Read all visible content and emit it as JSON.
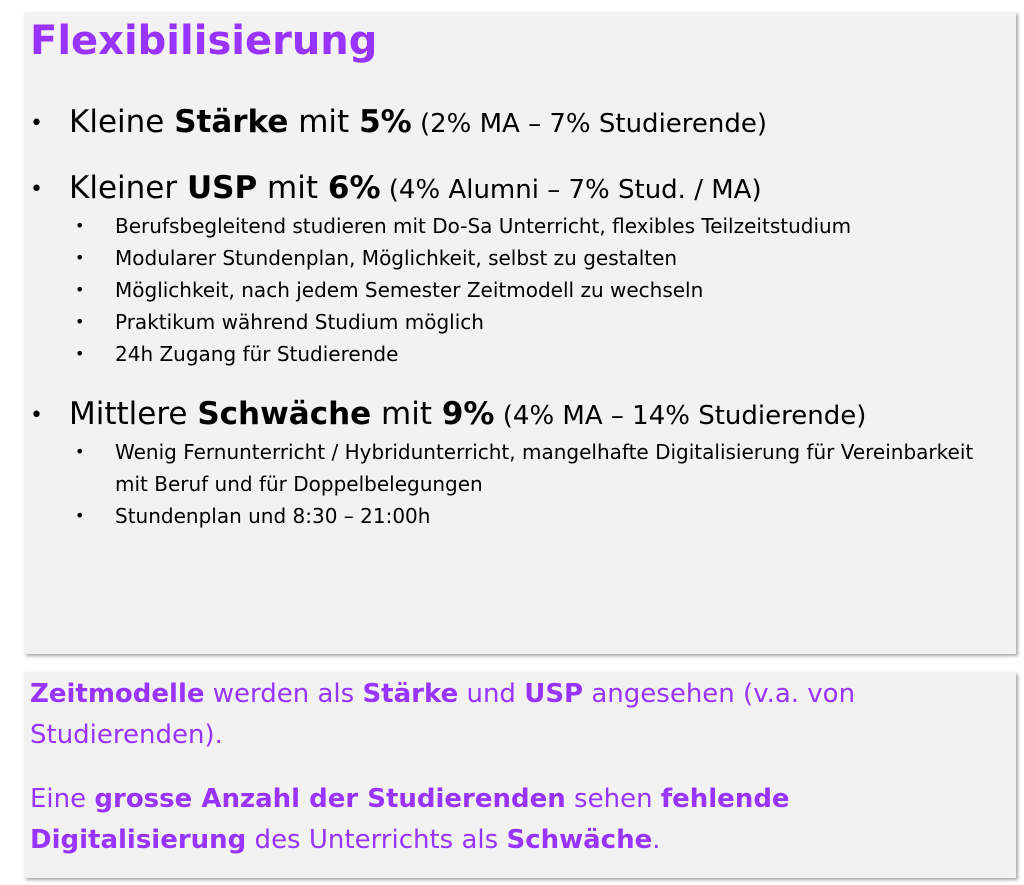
{
  "title": "Flexibilisierung",
  "items": [
    {
      "pre": "Kleine ",
      "b1": "Stärke",
      "mid": " mit ",
      "b2": "5%",
      "paren": " (2% MA – 7% Studierende)",
      "subitems": []
    },
    {
      "pre": "Kleiner ",
      "b1": "USP",
      "mid": " mit ",
      "b2": "6%",
      "paren": " (4% Alumni – 7% Stud. / MA)",
      "subitems": [
        "Berufsbegleitend studieren mit Do-Sa Unterricht, flexibles Teilzeitstudium",
        "Modularer Stundenplan, Möglichkeit, selbst zu gestalten",
        "Möglichkeit, nach jedem Semester Zeitmodell zu wechseln",
        "Praktikum während Studium möglich",
        "24h Zugang für Studierende"
      ]
    },
    {
      "pre": "Mittlere ",
      "b1": "Schwäche",
      "mid": " mit ",
      "b2": "9%",
      "paren": " (4% MA – 14% Studierende)",
      "subitems": [
        "Wenig Fernunterricht / Hybridunterricht, mangelhafte Digitalisierung für Vereinbarkeit mit Beruf und für Doppelbelegungen",
        "Stundenplan und 8:30 – 21:00h"
      ]
    }
  ],
  "summary": {
    "p1": {
      "b1": "Zeitmodelle",
      "t1": " werden als ",
      "b2": "Stärke",
      "t2": " und ",
      "b3": "USP",
      "t3": " angesehen (v.a. von Studierenden)."
    },
    "p2": {
      "t1": "Eine ",
      "b1": "grosse Anzahl der Studierenden",
      "t2": " sehen ",
      "b2": "fehlende Digitalisierung",
      "t3": " des Unterrichts als ",
      "b3": "Schwäche",
      "t4": "."
    }
  }
}
